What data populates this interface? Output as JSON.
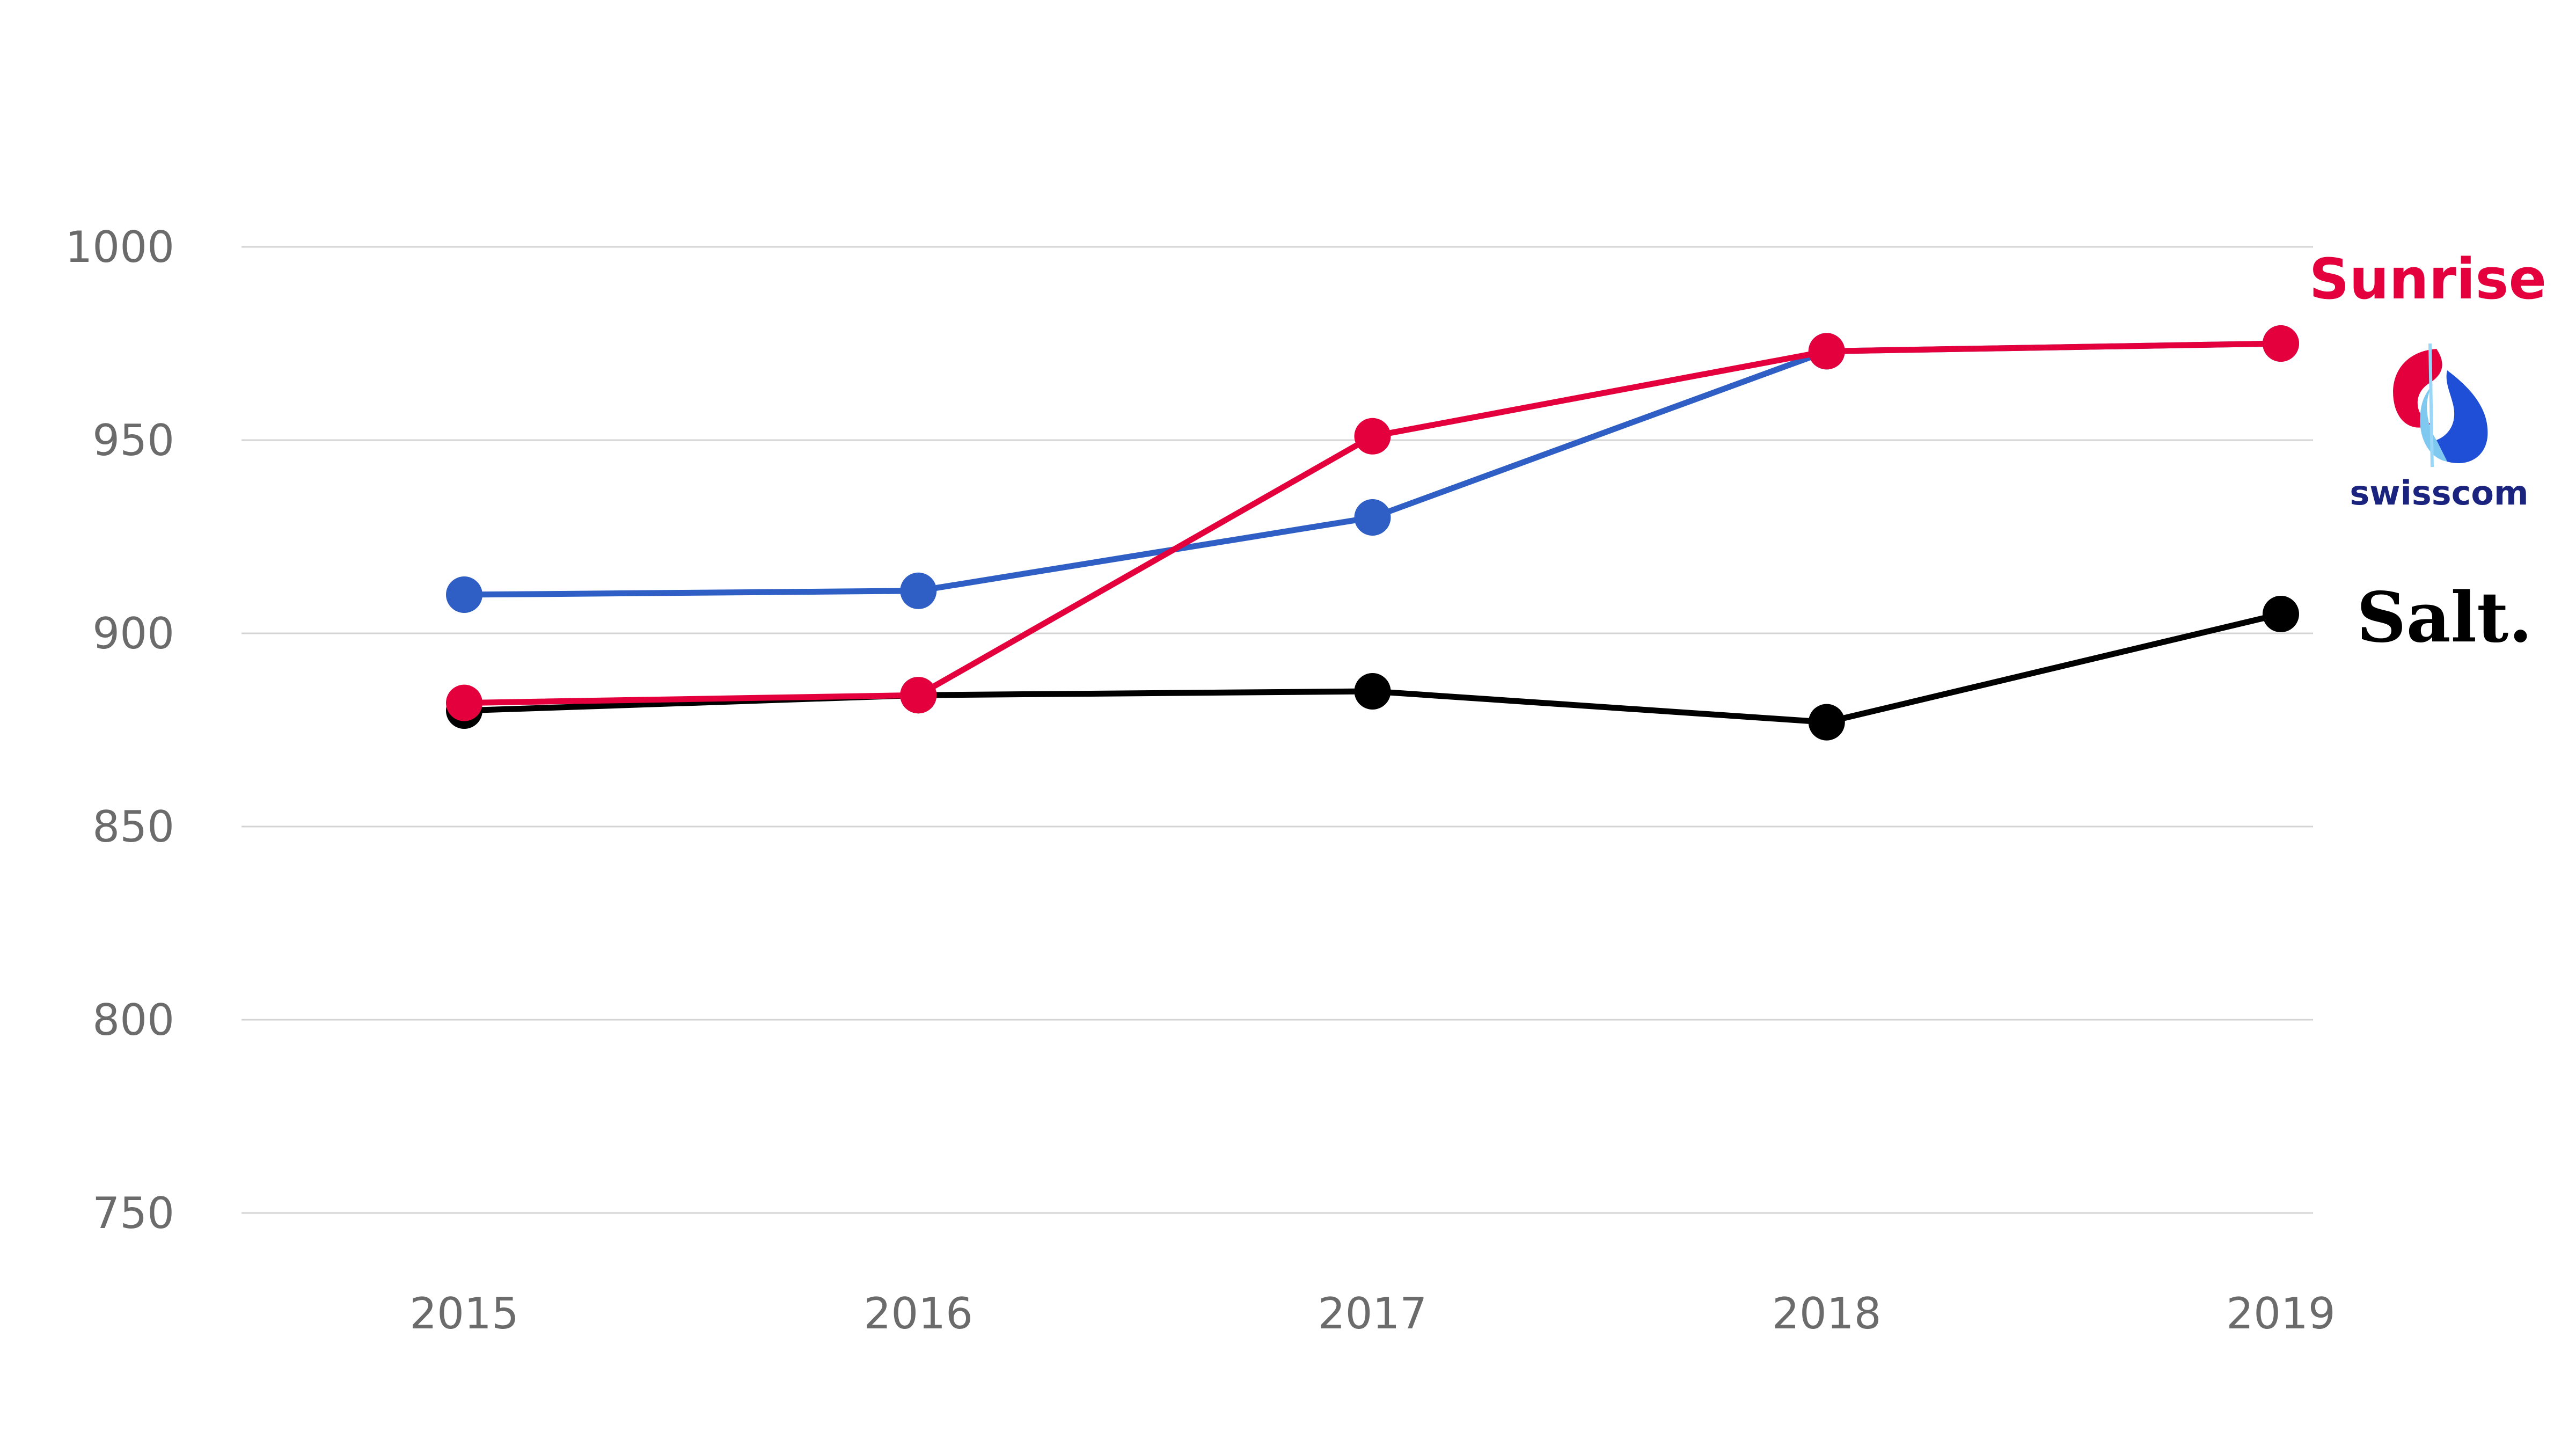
{
  "chart_data": {
    "type": "line",
    "title": "",
    "xlabel": "",
    "ylabel": "",
    "x": [
      "2015",
      "2016",
      "2017",
      "2018",
      "2019"
    ],
    "ylim": [
      750,
      1000
    ],
    "yticks": [
      "750",
      "800",
      "850",
      "900",
      "950",
      "1000"
    ],
    "grid": true,
    "legend": "right, brand logos aligned with line ends",
    "series": [
      {
        "name": "Swisscom",
        "color": "#2f5ec4",
        "values": [
          910,
          911,
          930,
          973,
          975
        ]
      },
      {
        "name": "Salt.",
        "color": "#000000",
        "values": [
          880,
          884,
          885,
          877,
          905
        ]
      },
      {
        "name": "Sunrise",
        "color": "#e4003c",
        "values": [
          882,
          884,
          951,
          973,
          975
        ]
      }
    ],
    "legend_items": {
      "sunrise": "Sunrise",
      "swisscom": "swisscom",
      "salt": "Salt."
    },
    "swisscom_logo_colors": [
      "#e4003c",
      "#7fc8f0",
      "#1f4fd6"
    ]
  }
}
